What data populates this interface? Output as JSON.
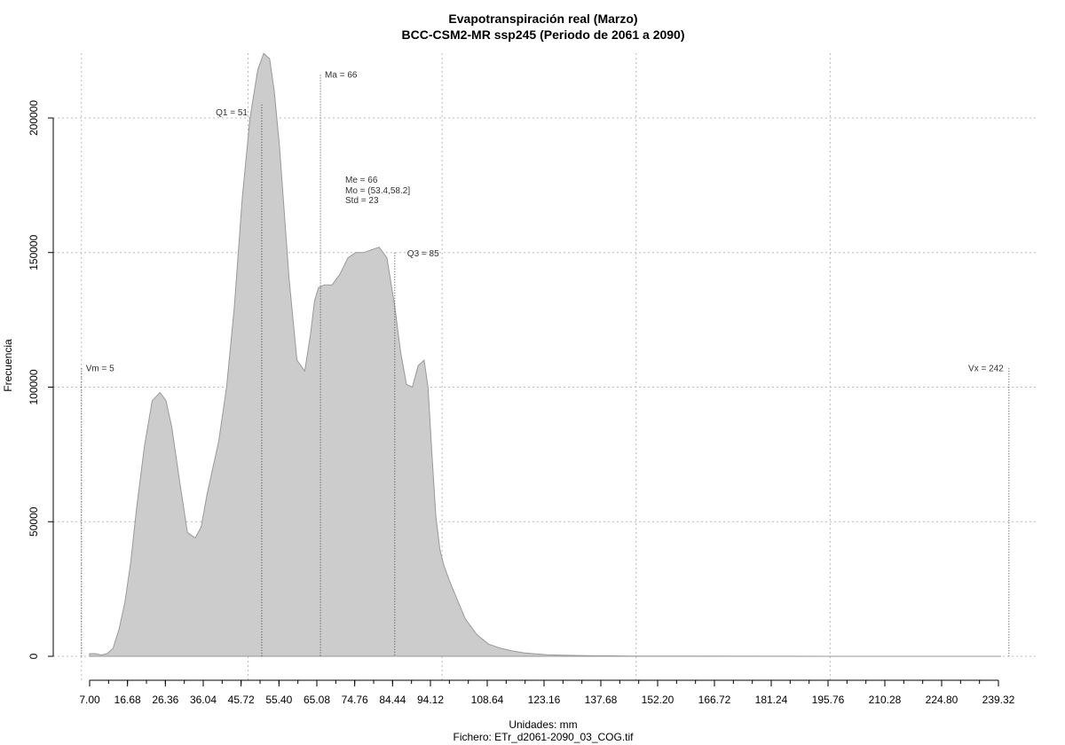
{
  "chart_data": {
    "type": "area",
    "title": "Evapotranspiración real (Marzo)",
    "subtitle": "BCC-CSM2-MR ssp245 (Periodo de 2061 a 2090)",
    "xlabel": "Unidades: mm",
    "ylabel": "Frecuencia",
    "caption": "Fichero: ETr_d2061-2090_03_COG.tif",
    "xlim": [
      7.0,
      240.0
    ],
    "ylim": [
      0,
      225000
    ],
    "grid": true,
    "fill_color": "#cccccc",
    "line_color": "#999999",
    "x_ticks": [
      "7.00",
      "16.68",
      "26.36",
      "36.04",
      "45.72",
      "55.40",
      "65.08",
      "74.76",
      "84.44",
      "94.12",
      "108.64",
      "123.16",
      "137.68",
      "152.20",
      "166.72",
      "181.24",
      "195.76",
      "210.28",
      "224.80",
      "239.32"
    ],
    "x_tick_values": [
      7.0,
      16.68,
      26.36,
      36.04,
      45.72,
      55.4,
      65.08,
      74.76,
      84.44,
      94.12,
      108.64,
      123.16,
      137.68,
      152.2,
      166.72,
      181.24,
      195.76,
      210.28,
      224.8,
      239.32
    ],
    "y_ticks": [
      "0",
      "50000",
      "100000",
      "150000",
      "200000"
    ],
    "y_tick_values": [
      0,
      50000,
      100000,
      150000,
      200000
    ],
    "x_grid_values": [
      4.9,
      47.5,
      97.1,
      146.7,
      196.3
    ],
    "density": {
      "x": [
        7.0,
        8.5,
        10.0,
        11.5,
        13.0,
        14.5,
        16.0,
        17.5,
        19.0,
        21.0,
        23.0,
        25.0,
        26.5,
        28.0,
        30.0,
        32.0,
        34.0,
        35.5,
        37.0,
        38.5,
        40.0,
        42.0,
        44.0,
        46.0,
        48.0,
        50.0,
        51.5,
        53.0,
        54.2,
        55.5,
        56.5,
        58.0,
        60.0,
        62.0,
        63.5,
        64.5,
        65.5,
        67.0,
        69.0,
        71.0,
        73.0,
        75.0,
        77.0,
        79.0,
        81.0,
        83.0,
        85.0,
        86.5,
        88.0,
        89.5,
        91.0,
        92.5,
        93.5,
        94.5,
        95.5,
        96.5,
        97.5,
        99.0,
        101.0,
        103.0,
        106.0,
        109.0,
        112.0,
        115.0,
        118.0,
        121.0,
        124.0,
        128.0,
        132.0,
        136.0,
        140.0,
        145.0,
        150.0,
        160.0,
        180.0,
        200.0,
        220.0,
        240.0
      ],
      "y": [
        1000,
        1000,
        500,
        1000,
        3000,
        10000,
        20000,
        35000,
        55000,
        78000,
        95000,
        98000,
        95000,
        85000,
        65000,
        46000,
        44000,
        48000,
        60000,
        70000,
        80000,
        100000,
        130000,
        170000,
        200000,
        218000,
        224000,
        222000,
        210000,
        190000,
        170000,
        140000,
        110000,
        106000,
        120000,
        132000,
        137000,
        138000,
        138000,
        142000,
        148000,
        150000,
        150000,
        151000,
        152000,
        148000,
        130000,
        113000,
        101000,
        100000,
        108000,
        110000,
        100000,
        75000,
        52000,
        40000,
        34000,
        28000,
        21000,
        14000,
        8000,
        4500,
        3000,
        2000,
        1300,
        900,
        600,
        400,
        300,
        200,
        200,
        100,
        100,
        50,
        20,
        10,
        0,
        0
      ]
    },
    "markers": [
      {
        "label": "Vm = 5",
        "x": 4.9,
        "top": 107000
      },
      {
        "label": "Q1 = 51",
        "x": 51.0,
        "top": 205000
      },
      {
        "label": "Ma = 66",
        "x": 66.0,
        "top": 216000
      },
      {
        "label": "Q3 = 85",
        "x": 85.0,
        "top": 150000
      },
      {
        "label": "Vx = 242",
        "x": 242.0,
        "top": 107000
      }
    ],
    "stats": {
      "median": "Me = 66",
      "mode": "Mo = (53.4,58.2]",
      "std": "Std = 23"
    }
  }
}
